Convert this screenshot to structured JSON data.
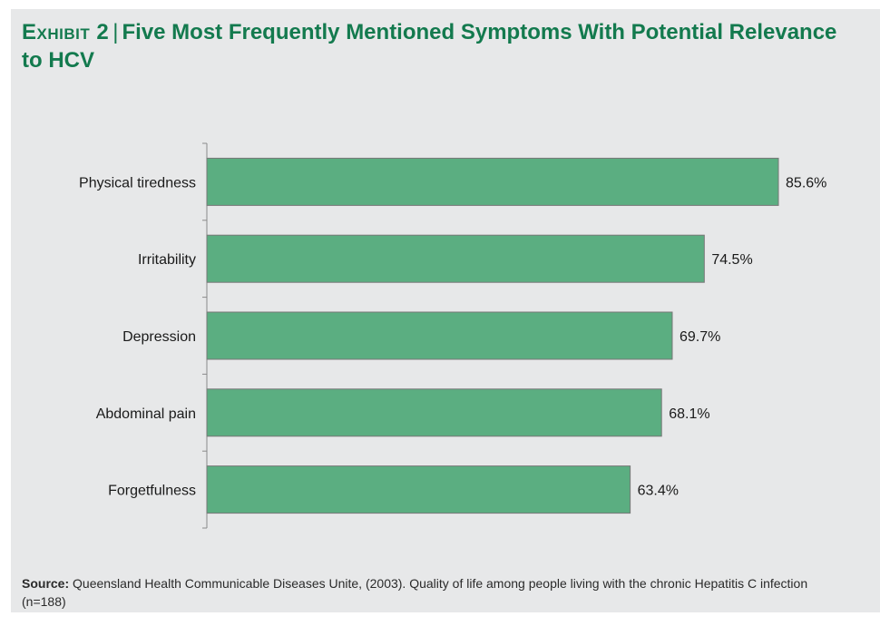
{
  "exhibit": {
    "label": "Exhibit 2",
    "separator": "|",
    "title": "Five Most Frequently Mentioned Symptoms With Potential Relevance to HCV"
  },
  "chart_data": {
    "type": "bar",
    "orientation": "horizontal",
    "categories": [
      "Physical tiredness",
      "Irritability",
      "Depression",
      "Abdominal pain",
      "Forgetfulness"
    ],
    "values": [
      85.6,
      74.5,
      69.7,
      68.1,
      63.4
    ],
    "data_labels": [
      "85.6%",
      "74.5%",
      "69.7%",
      "68.1%",
      "63.4%"
    ],
    "xlim": [
      0,
      100
    ],
    "unit": "%",
    "bar_color": "#5bae81",
    "bar_edge_color": "#777777",
    "grid": false,
    "legend": "none"
  },
  "source": {
    "label": "Source:",
    "text": "Queensland Health Communicable Diseases Unite, (2003). Quality of life among people living with the chronic Hepatitis C infection (n=188)"
  }
}
